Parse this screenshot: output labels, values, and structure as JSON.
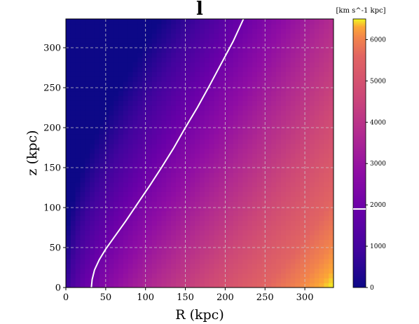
{
  "chart_data": {
    "type": "heatmap",
    "title": "l",
    "xlabel": "R (kpc)",
    "ylabel": "z (kpc)",
    "xlim": [
      0,
      336
    ],
    "ylim": [
      0,
      336
    ],
    "xticks": [
      0,
      50,
      100,
      150,
      200,
      250,
      300
    ],
    "yticks": [
      0,
      50,
      100,
      150,
      200,
      250,
      300
    ],
    "grid": true,
    "colormap": "plasma",
    "field": {
      "vmin": 0,
      "vmax": 6500,
      "grid_values_at_x": [
        0,
        50,
        100,
        150,
        200,
        250,
        336
      ],
      "grid_values_at_z": [
        0,
        50,
        100,
        150,
        200,
        250,
        336
      ],
      "note_scale": "linear"
    },
    "colorbar": {
      "units": "[km s^-1 kpc]",
      "ticks": [
        0,
        1000,
        2000,
        3000,
        4000,
        5000,
        6000
      ],
      "range": [
        0,
        6500
      ],
      "marker_value": 1900,
      "marker_color": "#ffffff"
    },
    "series": [
      {
        "type": "line",
        "color": "#ffffff",
        "x": [
          32,
          33,
          36,
          42,
          50,
          60,
          75,
          90,
          105,
          120,
          135,
          150,
          165,
          180,
          195,
          210,
          223
        ],
        "y": [
          0,
          10,
          22,
          35,
          48,
          62,
          83,
          105,
          127,
          150,
          174,
          200,
          225,
          252,
          280,
          308,
          336
        ]
      }
    ]
  }
}
